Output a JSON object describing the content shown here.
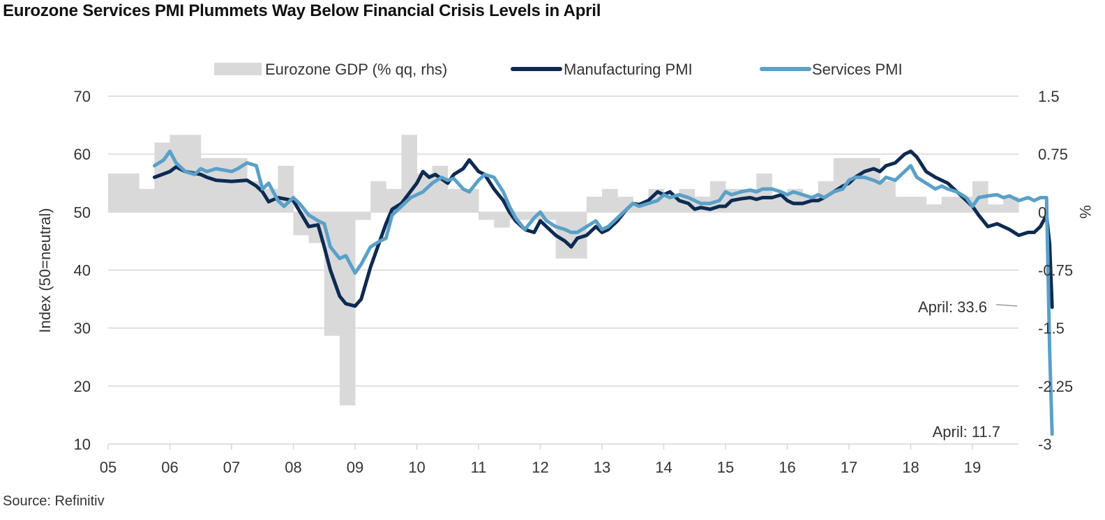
{
  "title": "Eurozone Services PMI Plummets Way Below Financial Crisis Levels in April",
  "source": "Source: Refinitiv",
  "colors": {
    "gdp": "#d9d9d9",
    "manufacturing": "#0d2a52",
    "services": "#5aa0c8",
    "grid": "#d6d6d6",
    "text": "#333333"
  },
  "chart_data": {
    "type": "line",
    "legend": [
      {
        "key": "gdp",
        "label": "Eurozone GDP (% qq, rhs)"
      },
      {
        "key": "manufacturing",
        "label": "Manufacturing PMI"
      },
      {
        "key": "services",
        "label": "Services PMI"
      }
    ],
    "legend_position": "top-center",
    "grid": "horizontal",
    "ylabel": "Index (50=neutral)",
    "ylabel_right": "%",
    "ylim": [
      10,
      70
    ],
    "ylim_right": [
      -3,
      1.5
    ],
    "yticks": [
      "70",
      "60",
      "50",
      "40",
      "30",
      "20",
      "10"
    ],
    "yticks_right": [
      "1.5",
      "0.75",
      "0",
      "-0.75",
      "-1.5",
      "-2.25",
      "-3"
    ],
    "xticks": [
      "05",
      "06",
      "07",
      "08",
      "09",
      "10",
      "11",
      "12",
      "13",
      "14",
      "15",
      "16",
      "17",
      "18",
      "19"
    ],
    "x_range": [
      2005.0,
      2020.35
    ],
    "annotations": [
      {
        "text": "April: 33.6",
        "series": "manufacturing",
        "x": 2020.29,
        "y": 33.6
      },
      {
        "text": "April: 11.7",
        "series": "services",
        "x": 2020.29,
        "y": 11.7
      }
    ],
    "gdp": {
      "name": "Eurozone GDP (% qq, rhs)",
      "quarters": [
        2005.0,
        2005.25,
        2005.5,
        2005.75,
        2006.0,
        2006.25,
        2006.5,
        2006.75,
        2007.0,
        2007.25,
        2007.5,
        2007.75,
        2008.0,
        2008.25,
        2008.5,
        2008.75,
        2009.0,
        2009.25,
        2009.5,
        2009.75,
        2010.0,
        2010.25,
        2010.5,
        2010.75,
        2011.0,
        2011.25,
        2011.5,
        2011.75,
        2012.0,
        2012.25,
        2012.5,
        2012.75,
        2013.0,
        2013.25,
        2013.5,
        2013.75,
        2014.0,
        2014.25,
        2014.5,
        2014.75,
        2015.0,
        2015.25,
        2015.5,
        2015.75,
        2016.0,
        2016.25,
        2016.5,
        2016.75,
        2017.0,
        2017.25,
        2017.5,
        2017.75,
        2018.0,
        2018.25,
        2018.5,
        2018.75,
        2019.0,
        2019.25,
        2019.5,
        2019.75,
        2020.0
      ],
      "values": [
        0.5,
        0.5,
        0.3,
        0.9,
        1.0,
        1.0,
        0.7,
        0.7,
        0.7,
        0.4,
        0.3,
        0.6,
        -0.3,
        -0.4,
        -1.6,
        -2.5,
        -0.1,
        0.4,
        0.3,
        1.0,
        0.5,
        0.6,
        0.3,
        0.3,
        -0.1,
        -0.2,
        -0.1,
        -0.1,
        -0.1,
        -0.6,
        -0.6,
        0.2,
        0.3,
        0.2,
        0.1,
        0.3,
        0.2,
        0.3,
        0.2,
        0.4,
        0.3,
        0.3,
        0.5,
        0.2,
        0.3,
        0.2,
        0.4,
        0.7,
        0.7,
        0.7,
        0.4,
        0.2,
        0.2,
        0.1,
        0.2,
        0.2,
        0.4,
        0.1,
        0.2,
        0.0,
        0.0
      ]
    },
    "series": [
      {
        "name": "Manufacturing PMI",
        "key": "manufacturing",
        "points": [
          [
            2005.75,
            56.0
          ],
          [
            2006.0,
            57.0
          ],
          [
            2006.1,
            57.8
          ],
          [
            2006.25,
            57.0
          ],
          [
            2006.5,
            56.5
          ],
          [
            2006.6,
            56.0
          ],
          [
            2006.75,
            55.5
          ],
          [
            2007.0,
            55.3
          ],
          [
            2007.25,
            55.5
          ],
          [
            2007.4,
            54.5
          ],
          [
            2007.5,
            53.5
          ],
          [
            2007.6,
            51.8
          ],
          [
            2007.75,
            52.5
          ],
          [
            2008.0,
            52.0
          ],
          [
            2008.25,
            47.5
          ],
          [
            2008.4,
            47.8
          ],
          [
            2008.5,
            44.0
          ],
          [
            2008.6,
            40.0
          ],
          [
            2008.75,
            35.5
          ],
          [
            2008.85,
            34.2
          ],
          [
            2009.0,
            33.8
          ],
          [
            2009.1,
            35.0
          ],
          [
            2009.25,
            40.5
          ],
          [
            2009.4,
            45.0
          ],
          [
            2009.5,
            48.0
          ],
          [
            2009.6,
            50.5
          ],
          [
            2009.75,
            51.5
          ],
          [
            2010.0,
            55.0
          ],
          [
            2010.1,
            57.0
          ],
          [
            2010.2,
            56.0
          ],
          [
            2010.3,
            56.5
          ],
          [
            2010.5,
            55.0
          ],
          [
            2010.6,
            56.5
          ],
          [
            2010.75,
            57.5
          ],
          [
            2010.85,
            59.0
          ],
          [
            2011.0,
            57.0
          ],
          [
            2011.1,
            56.5
          ],
          [
            2011.25,
            54.0
          ],
          [
            2011.4,
            52.0
          ],
          [
            2011.5,
            50.0
          ],
          [
            2011.6,
            48.5
          ],
          [
            2011.75,
            47.0
          ],
          [
            2011.9,
            46.5
          ],
          [
            2012.0,
            48.5
          ],
          [
            2012.1,
            47.5
          ],
          [
            2012.25,
            46.0
          ],
          [
            2012.4,
            45.0
          ],
          [
            2012.5,
            44.0
          ],
          [
            2012.6,
            45.5
          ],
          [
            2012.75,
            46.0
          ],
          [
            2012.9,
            47.5
          ],
          [
            2013.0,
            46.5
          ],
          [
            2013.1,
            47.0
          ],
          [
            2013.25,
            48.5
          ],
          [
            2013.4,
            50.5
          ],
          [
            2013.5,
            51.5
          ],
          [
            2013.6,
            51.3
          ],
          [
            2013.75,
            52.0
          ],
          [
            2013.9,
            53.5
          ],
          [
            2014.0,
            53.0
          ],
          [
            2014.1,
            53.5
          ],
          [
            2014.25,
            52.0
          ],
          [
            2014.4,
            51.5
          ],
          [
            2014.5,
            50.5
          ],
          [
            2014.6,
            50.8
          ],
          [
            2014.75,
            50.5
          ],
          [
            2014.9,
            51.0
          ],
          [
            2015.0,
            51.0
          ],
          [
            2015.1,
            52.0
          ],
          [
            2015.25,
            52.3
          ],
          [
            2015.4,
            52.5
          ],
          [
            2015.5,
            52.2
          ],
          [
            2015.6,
            52.5
          ],
          [
            2015.75,
            52.5
          ],
          [
            2015.9,
            53.0
          ],
          [
            2016.0,
            52.0
          ],
          [
            2016.1,
            51.5
          ],
          [
            2016.25,
            51.5
          ],
          [
            2016.4,
            52.0
          ],
          [
            2016.5,
            52.0
          ],
          [
            2016.6,
            52.5
          ],
          [
            2016.75,
            53.5
          ],
          [
            2016.9,
            54.5
          ],
          [
            2017.0,
            55.0
          ],
          [
            2017.1,
            56.0
          ],
          [
            2017.25,
            57.0
          ],
          [
            2017.4,
            57.5
          ],
          [
            2017.5,
            57.0
          ],
          [
            2017.6,
            58.0
          ],
          [
            2017.75,
            58.5
          ],
          [
            2017.9,
            60.0
          ],
          [
            2018.0,
            60.5
          ],
          [
            2018.1,
            59.5
          ],
          [
            2018.25,
            57.0
          ],
          [
            2018.4,
            56.0
          ],
          [
            2018.5,
            55.5
          ],
          [
            2018.6,
            55.0
          ],
          [
            2018.75,
            53.5
          ],
          [
            2018.9,
            52.0
          ],
          [
            2019.0,
            51.0
          ],
          [
            2019.1,
            49.5
          ],
          [
            2019.25,
            47.5
          ],
          [
            2019.4,
            48.0
          ],
          [
            2019.5,
            47.5
          ],
          [
            2019.6,
            47.0
          ],
          [
            2019.75,
            46.0
          ],
          [
            2019.9,
            46.5
          ],
          [
            2020.0,
            46.5
          ],
          [
            2020.1,
            47.5
          ],
          [
            2020.2,
            49.5
          ],
          [
            2020.25,
            44.5
          ],
          [
            2020.29,
            33.6
          ]
        ]
      },
      {
        "name": "Services PMI",
        "key": "services",
        "points": [
          [
            2005.75,
            58.0
          ],
          [
            2005.9,
            59.0
          ],
          [
            2006.0,
            60.5
          ],
          [
            2006.1,
            58.5
          ],
          [
            2006.25,
            57.0
          ],
          [
            2006.4,
            56.5
          ],
          [
            2006.5,
            57.5
          ],
          [
            2006.6,
            57.0
          ],
          [
            2006.75,
            57.5
          ],
          [
            2007.0,
            57.0
          ],
          [
            2007.1,
            57.5
          ],
          [
            2007.25,
            58.5
          ],
          [
            2007.4,
            58.0
          ],
          [
            2007.5,
            54.0
          ],
          [
            2007.6,
            55.0
          ],
          [
            2007.75,
            52.0
          ],
          [
            2007.85,
            51.0
          ],
          [
            2008.0,
            52.5
          ],
          [
            2008.1,
            51.5
          ],
          [
            2008.25,
            49.5
          ],
          [
            2008.4,
            48.5
          ],
          [
            2008.5,
            48.0
          ],
          [
            2008.6,
            44.0
          ],
          [
            2008.75,
            42.0
          ],
          [
            2008.85,
            42.5
          ],
          [
            2009.0,
            39.5
          ],
          [
            2009.1,
            41.0
          ],
          [
            2009.25,
            44.0
          ],
          [
            2009.4,
            45.0
          ],
          [
            2009.5,
            45.5
          ],
          [
            2009.6,
            49.5
          ],
          [
            2009.75,
            51.0
          ],
          [
            2009.9,
            52.5
          ],
          [
            2010.0,
            53.0
          ],
          [
            2010.1,
            53.5
          ],
          [
            2010.25,
            55.0
          ],
          [
            2010.4,
            56.0
          ],
          [
            2010.5,
            55.5
          ],
          [
            2010.6,
            55.8
          ],
          [
            2010.75,
            54.0
          ],
          [
            2010.85,
            53.5
          ],
          [
            2011.0,
            55.5
          ],
          [
            2011.1,
            56.5
          ],
          [
            2011.25,
            56.0
          ],
          [
            2011.4,
            53.5
          ],
          [
            2011.5,
            51.0
          ],
          [
            2011.6,
            49.0
          ],
          [
            2011.75,
            47.0
          ],
          [
            2011.9,
            49.0
          ],
          [
            2012.0,
            50.0
          ],
          [
            2012.1,
            48.5
          ],
          [
            2012.25,
            47.5
          ],
          [
            2012.4,
            47.0
          ],
          [
            2012.5,
            46.5
          ],
          [
            2012.6,
            46.5
          ],
          [
            2012.75,
            47.5
          ],
          [
            2012.9,
            48.5
          ],
          [
            2013.0,
            47.0
          ],
          [
            2013.1,
            47.5
          ],
          [
            2013.25,
            49.0
          ],
          [
            2013.4,
            50.5
          ],
          [
            2013.5,
            51.5
          ],
          [
            2013.6,
            51.0
          ],
          [
            2013.75,
            51.5
          ],
          [
            2013.9,
            52.0
          ],
          [
            2014.0,
            53.0
          ],
          [
            2014.1,
            52.5
          ],
          [
            2014.25,
            53.0
          ],
          [
            2014.4,
            52.5
          ],
          [
            2014.5,
            52.0
          ],
          [
            2014.6,
            51.5
          ],
          [
            2014.75,
            51.5
          ],
          [
            2014.9,
            52.0
          ],
          [
            2015.0,
            53.5
          ],
          [
            2015.1,
            53.0
          ],
          [
            2015.25,
            53.5
          ],
          [
            2015.4,
            53.8
          ],
          [
            2015.5,
            53.5
          ],
          [
            2015.6,
            54.0
          ],
          [
            2015.75,
            54.0
          ],
          [
            2015.9,
            53.5
          ],
          [
            2016.0,
            53.0
          ],
          [
            2016.1,
            53.5
          ],
          [
            2016.25,
            53.0
          ],
          [
            2016.4,
            52.5
          ],
          [
            2016.5,
            53.0
          ],
          [
            2016.6,
            52.5
          ],
          [
            2016.75,
            53.5
          ],
          [
            2016.9,
            54.0
          ],
          [
            2017.0,
            55.5
          ],
          [
            2017.1,
            56.0
          ],
          [
            2017.25,
            56.0
          ],
          [
            2017.4,
            55.5
          ],
          [
            2017.5,
            55.0
          ],
          [
            2017.6,
            56.0
          ],
          [
            2017.75,
            55.5
          ],
          [
            2017.9,
            57.0
          ],
          [
            2018.0,
            58.0
          ],
          [
            2018.1,
            56.0
          ],
          [
            2018.25,
            55.0
          ],
          [
            2018.4,
            54.0
          ],
          [
            2018.5,
            54.5
          ],
          [
            2018.6,
            54.0
          ],
          [
            2018.75,
            53.5
          ],
          [
            2018.9,
            52.5
          ],
          [
            2019.0,
            51.0
          ],
          [
            2019.1,
            52.5
          ],
          [
            2019.25,
            52.8
          ],
          [
            2019.4,
            53.0
          ],
          [
            2019.5,
            52.5
          ],
          [
            2019.6,
            52.8
          ],
          [
            2019.75,
            52.0
          ],
          [
            2019.9,
            52.5
          ],
          [
            2020.0,
            52.0
          ],
          [
            2020.1,
            52.5
          ],
          [
            2020.2,
            52.5
          ],
          [
            2020.25,
            26.4
          ],
          [
            2020.29,
            11.7
          ]
        ]
      }
    ]
  }
}
